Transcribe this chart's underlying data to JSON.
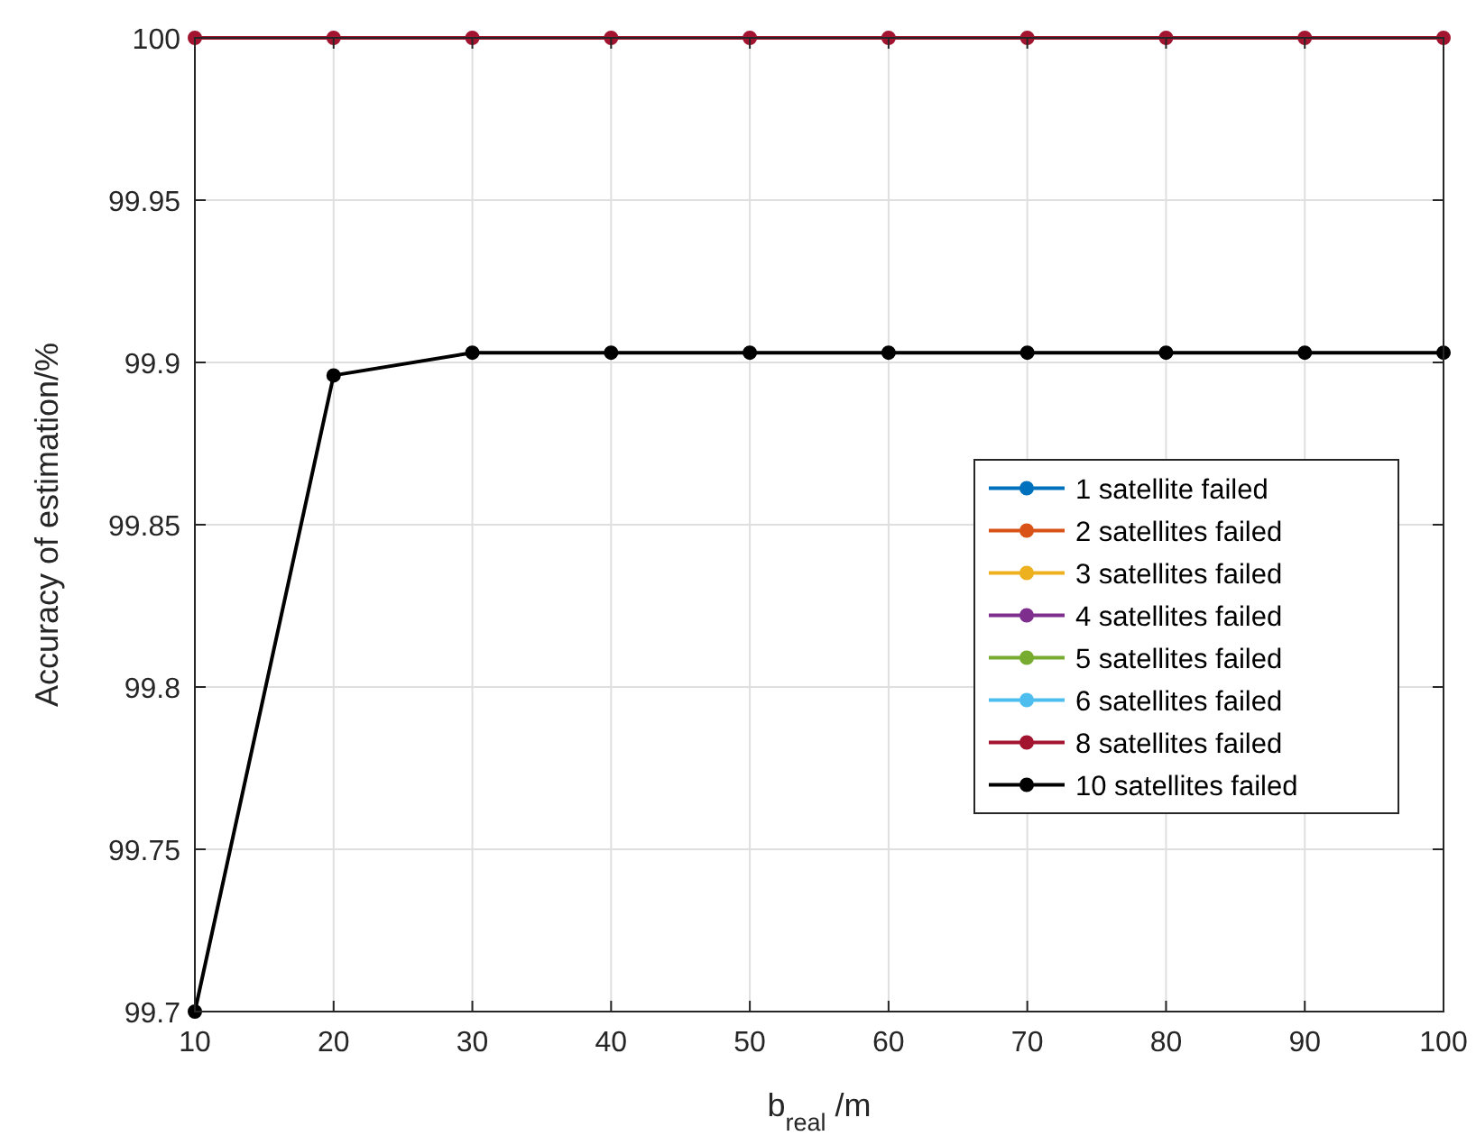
{
  "chart_data": {
    "type": "line",
    "xlabel": "b$_{real}$ /m",
    "ylabel": "Accuracy of estimation/%",
    "x": [
      10,
      20,
      30,
      40,
      50,
      60,
      70,
      80,
      90,
      100
    ],
    "xlim": [
      10,
      100
    ],
    "xticks": [
      10,
      20,
      30,
      40,
      50,
      60,
      70,
      80,
      90,
      100
    ],
    "ylim": [
      99.7,
      100
    ],
    "yticks": [
      99.7,
      99.75,
      99.8,
      99.85,
      99.9,
      99.95,
      100
    ],
    "grid": true,
    "legend": "right",
    "marker": "circle",
    "line_style": "solid",
    "series": [
      {
        "name": "1 satellite failed",
        "color": "#0072bd",
        "values": [
          null,
          null,
          null,
          null,
          null,
          null,
          null,
          null,
          null,
          null
        ]
      },
      {
        "name": "2 satellites failed",
        "color": "#d95319",
        "values": [
          null,
          null,
          null,
          null,
          null,
          null,
          null,
          null,
          null,
          null
        ]
      },
      {
        "name": "3 satellites failed",
        "color": "#edb120",
        "values": [
          null,
          null,
          null,
          null,
          null,
          null,
          null,
          null,
          null,
          null
        ]
      },
      {
        "name": "4 satellites failed",
        "color": "#7e2f8e",
        "values": [
          null,
          null,
          null,
          null,
          null,
          null,
          null,
          null,
          null,
          null
        ]
      },
      {
        "name": "5 satellites failed",
        "color": "#77ac30",
        "values": [
          null,
          null,
          null,
          null,
          null,
          null,
          null,
          null,
          null,
          null
        ]
      },
      {
        "name": "6 satellites failed",
        "color": "#4dbeee",
        "values": [
          null,
          null,
          null,
          null,
          null,
          null,
          null,
          null,
          null,
          null
        ]
      },
      {
        "name": "8 satellites failed",
        "color": "#a2142f",
        "values": [
          100,
          100,
          100,
          100,
          100,
          100,
          100,
          100,
          100,
          100
        ]
      },
      {
        "name": "10 satellites failed",
        "color": "#000000",
        "values": [
          99.7,
          99.896,
          99.903,
          99.903,
          99.903,
          99.903,
          99.903,
          99.903,
          99.903,
          99.903
        ]
      }
    ]
  }
}
